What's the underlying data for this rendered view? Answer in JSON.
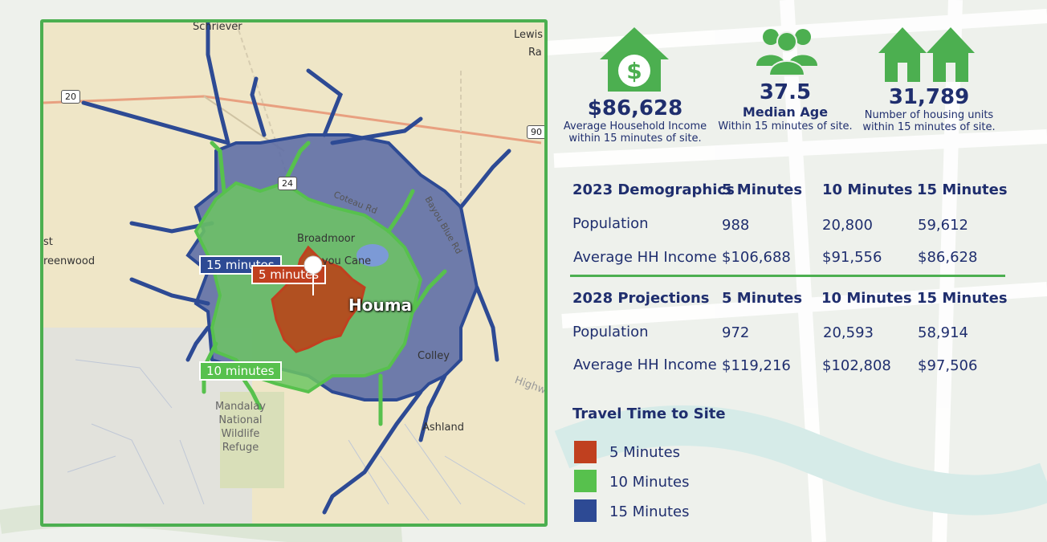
{
  "stats": [
    {
      "value": "$86,628",
      "line1": "Average Household Income",
      "line2": "within 15 minutes of site.",
      "icon": "house-dollar-icon"
    },
    {
      "value": "37.5",
      "line1": "Median Age",
      "line2": "Within 15 minutes of site.",
      "icon": "people-group-icon"
    },
    {
      "value": "31,789",
      "line1": "Number of housing units",
      "line2": "within 15 minutes of site.",
      "icon": "houses-icon"
    }
  ],
  "table_2023": {
    "header": [
      "2023 Demographics",
      "5 Minutes",
      "10 Minutes",
      "15 Minutes"
    ],
    "rows": [
      [
        "Population",
        "988",
        "20,800",
        "59,612"
      ],
      [
        "Average HH Income",
        "$106,688",
        "$91,556",
        "$86,628"
      ]
    ]
  },
  "table_2028": {
    "header": [
      "2028 Projections",
      "5 Minutes",
      "10 Minutes",
      "15 Minutes"
    ],
    "rows": [
      [
        "Population",
        "972",
        "20,593",
        "58,914"
      ],
      [
        "Average HH Income",
        "$119,216",
        "$102,808",
        "$97,506"
      ]
    ]
  },
  "legend": {
    "title": "Travel Time to Site",
    "items": [
      {
        "label": "5 Minutes",
        "color": "#c0401f"
      },
      {
        "label": "10 Minutes",
        "color": "#57c14d"
      },
      {
        "label": "15 Minutes",
        "color": "#2d4a94"
      }
    ]
  },
  "map": {
    "labels": {
      "schriever": "Schriever",
      "lewis": "Lewis",
      "ra": "Ra",
      "st": "st",
      "reenwood": "reenwood",
      "broadmoor": "Broadmoor",
      "bayou_cane": "Bayou Cane",
      "houma": "Houma",
      "ashland": "Ashland",
      "colley": "Colley",
      "highway": "Highwa",
      "coteau": "Coteau Rd",
      "blue": "Bayou Blue Rd",
      "refuge": [
        "Mandalay",
        "National",
        "Wildlife",
        "Refuge"
      ]
    },
    "shields": {
      "s20": "20",
      "s90": "90",
      "s24": "24"
    },
    "zone_tags": {
      "t15": "15 minutes",
      "t10": "10 minutes",
      "t5": "5 minutes"
    }
  },
  "colors": {
    "accent": "#4caf50",
    "navy": "#1f2e6e"
  }
}
